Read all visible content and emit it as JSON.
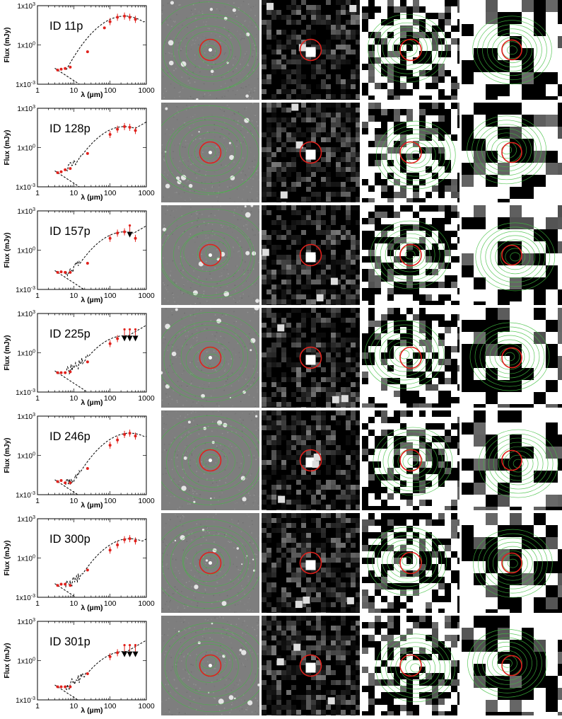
{
  "axis": {
    "ylabel": "Flux (mJy)",
    "xlabel": "λ (µm)",
    "y_ticks": [
      "1x10",
      "1x10",
      "1x10"
    ],
    "y_tick_exps": [
      "3",
      "0",
      "-3"
    ],
    "x_ticks": [
      "1",
      "10",
      "100",
      "1000"
    ]
  },
  "colors": {
    "data_points": "#e0211c",
    "upper_limit_arrows": "#000000",
    "model_curve": "#000000",
    "circle": "#e0211c",
    "contours": "#3fbf3f"
  },
  "chart_data": [
    {
      "type": "scatter",
      "title": "ID 11p",
      "x_scale": "log",
      "y_scale": "log",
      "xlim": [
        1,
        1000
      ],
      "ylim": [
        0.001,
        1000
      ],
      "points": {
        "x": [
          3.6,
          4.5,
          5.8,
          8,
          24,
          70,
          100,
          160,
          250,
          350,
          500
        ],
        "y": [
          0.012,
          0.014,
          0.016,
          0.02,
          0.3,
          20,
          60,
          130,
          160,
          130,
          90
        ]
      },
      "upper_limits": []
    },
    {
      "type": "scatter",
      "title": "ID 128p",
      "x_scale": "log",
      "y_scale": "log",
      "xlim": [
        1,
        1000
      ],
      "ylim": [
        0.001,
        1000
      ],
      "points": {
        "x": [
          3.6,
          4.5,
          5.8,
          8,
          24,
          100,
          160,
          250,
          350,
          500
        ],
        "y": [
          0.012,
          0.014,
          0.02,
          0.025,
          0.35,
          10,
          25,
          40,
          35,
          20
        ]
      },
      "upper_limits": []
    },
    {
      "type": "scatter",
      "title": "ID 157p",
      "x_scale": "log",
      "y_scale": "log",
      "xlim": [
        1,
        1000
      ],
      "ylim": [
        0.001,
        1000
      ],
      "points": {
        "x": [
          3.6,
          4.5,
          5.8,
          8,
          24,
          100,
          160,
          250,
          500
        ],
        "y": [
          0.02,
          0.022,
          0.02,
          0.02,
          0.1,
          8,
          20,
          25,
          8
        ]
      },
      "upper_limits": {
        "x": [
          350
        ],
        "y": [
          25
        ]
      }
    },
    {
      "type": "scatter",
      "title": "ID 225p",
      "x_scale": "log",
      "y_scale": "log",
      "xlim": [
        1,
        1000
      ],
      "ylim": [
        0.001,
        1000
      ],
      "points": {
        "x": [
          3.6,
          4.5,
          5.8,
          8,
          24,
          100,
          160
        ],
        "y": [
          0.03,
          0.03,
          0.03,
          0.035,
          0.2,
          5,
          12
        ]
      },
      "upper_limits": {
        "x": [
          250,
          350,
          500
        ],
        "y": [
          20,
          20,
          20
        ]
      }
    },
    {
      "type": "scatter",
      "title": "ID 246p",
      "x_scale": "log",
      "y_scale": "log",
      "xlim": [
        1,
        1000
      ],
      "ylim": [
        0.001,
        1000
      ],
      "points": {
        "x": [
          3.6,
          4.5,
          5.8,
          8,
          24,
          100,
          160,
          250,
          350,
          500
        ],
        "y": [
          0.01,
          0.012,
          0.008,
          0.008,
          0.1,
          6,
          15,
          40,
          50,
          30
        ]
      },
      "upper_limits": []
    },
    {
      "type": "scatter",
      "title": "ID 300p",
      "x_scale": "log",
      "y_scale": "log",
      "xlim": [
        1,
        1000
      ],
      "ylim": [
        0.001,
        1000
      ],
      "points": {
        "x": [
          3.6,
          4.5,
          5.8,
          8,
          24,
          100,
          160,
          250,
          350,
          500
        ],
        "y": [
          0.008,
          0.01,
          0.01,
          0.008,
          0.12,
          4,
          10,
          25,
          30,
          20
        ]
      },
      "upper_limits": []
    },
    {
      "type": "scatter",
      "title": "ID 301p",
      "x_scale": "log",
      "y_scale": "log",
      "xlim": [
        1,
        1000
      ],
      "ylim": [
        0.001,
        1000
      ],
      "points": {
        "x": [
          3.6,
          4.5,
          5.8,
          8,
          24,
          100,
          160
        ],
        "y": [
          0.01,
          0.01,
          0.01,
          0.01,
          0.1,
          2,
          4
        ]
      },
      "upper_limits": {
        "x": [
          250,
          350,
          500
        ],
        "y": [
          5,
          5,
          5
        ]
      }
    }
  ]
}
